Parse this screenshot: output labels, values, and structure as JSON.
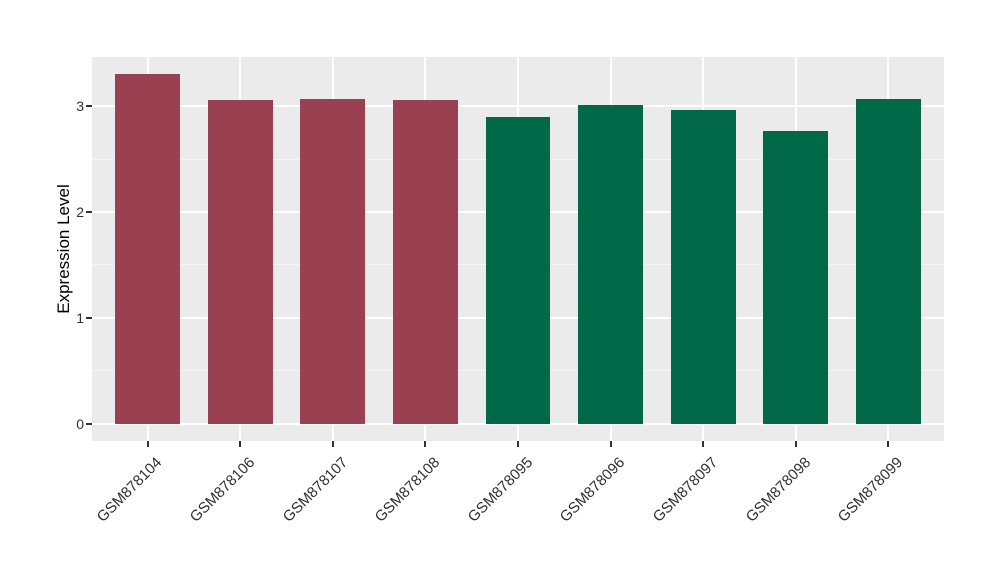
{
  "figure": {
    "background": "#FFFFFF",
    "panel_background": "#EBEBEB",
    "grid_major_color": "#FFFFFF",
    "grid_minor_color": "#F5F5F5",
    "axis_text_color": "#303030",
    "group_colors": {
      "maroon": "#9A4151",
      "green": "#016948"
    }
  },
  "chart_data": {
    "type": "bar",
    "title": "",
    "xlabel": "",
    "ylabel": "Expression Level",
    "categories": [
      "GSM878104",
      "GSM878106",
      "GSM878107",
      "GSM878108",
      "GSM878095",
      "GSM878096",
      "GSM878097",
      "GSM878098",
      "GSM878099"
    ],
    "values": [
      3.3,
      3.06,
      3.07,
      3.06,
      2.9,
      3.01,
      2.96,
      2.77,
      3.07
    ],
    "bar_colors": [
      "#9A4151",
      "#9A4151",
      "#9A4151",
      "#9A4151",
      "#016948",
      "#016948",
      "#016948",
      "#016948",
      "#016948"
    ],
    "y_ticks": [
      0,
      1,
      2,
      3
    ],
    "ylim": [
      -0.165,
      3.465
    ],
    "bar_width_ratio": 0.7,
    "x_tick_angle": 45,
    "grid": true,
    "legend": false
  }
}
